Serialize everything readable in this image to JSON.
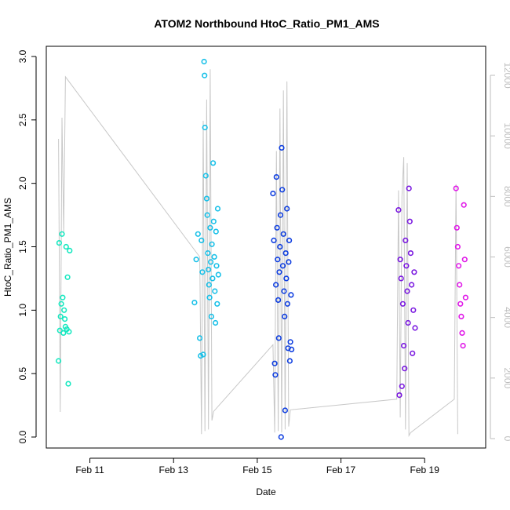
{
  "chart_data": {
    "type": "scatter",
    "title": "ATOM2 Northbound HtoC_Ratio_PM1_AMS",
    "xlabel": "Date",
    "ylabel": "HtoC_Ratio_PM1_AMS",
    "x_scale": "date",
    "xlim": [
      "2017-02-09 23:00",
      "2017-02-20 11:00"
    ],
    "ylim": [
      0,
      3.0
    ],
    "x_ticks": [
      "Feb 11",
      "Feb 13",
      "Feb 15",
      "Feb 17",
      "Feb 19"
    ],
    "y_ticks": [
      "0.0",
      "0.5",
      "1.0",
      "1.5",
      "2.0",
      "2.5",
      "3.0"
    ],
    "right_axis": {
      "ylim": [
        0,
        12000
      ],
      "ticks": [
        "0",
        "2000",
        "4000",
        "6000",
        "8000",
        "10000",
        "12000"
      ],
      "color": "#bdbdbd",
      "series_type": "line"
    },
    "grid": false,
    "legend": "none",
    "colors": {
      "group1": "#16e8c0",
      "group2": "#18c0e8",
      "group3": "#0e3ee0",
      "group4": "#7a18e0",
      "group5": "#e018e8",
      "secondary_line": "#c8c8c8"
    },
    "series": [
      {
        "group": "group1",
        "points": [
          [
            "2017-02-10 06:00",
            0.6
          ],
          [
            "2017-02-10 06:24",
            1.53
          ],
          [
            "2017-02-10 06:48",
            0.84
          ],
          [
            "2017-02-10 07:12",
            0.95
          ],
          [
            "2017-02-10 07:36",
            1.05
          ],
          [
            "2017-02-10 08:00",
            1.6
          ],
          [
            "2017-02-10 08:24",
            1.1
          ],
          [
            "2017-02-10 08:48",
            0.82
          ],
          [
            "2017-02-10 09:12",
            1.0
          ],
          [
            "2017-02-10 09:36",
            0.93
          ],
          [
            "2017-02-10 10:00",
            0.87
          ],
          [
            "2017-02-10 10:24",
            1.5
          ],
          [
            "2017-02-10 10:48",
            0.85
          ],
          [
            "2017-02-10 11:12",
            1.26
          ],
          [
            "2017-02-10 11:36",
            0.42
          ],
          [
            "2017-02-10 12:00",
            0.83
          ],
          [
            "2017-02-10 12:24",
            1.47
          ]
        ]
      },
      {
        "group": "group2",
        "points": [
          [
            "2017-02-13 12:00",
            1.06
          ],
          [
            "2017-02-13 13:00",
            1.4
          ],
          [
            "2017-02-13 14:00",
            1.6
          ],
          [
            "2017-02-13 15:00",
            0.78
          ],
          [
            "2017-02-13 15:30",
            0.64
          ],
          [
            "2017-02-13 16:00",
            1.55
          ],
          [
            "2017-02-13 16:30",
            1.3
          ],
          [
            "2017-02-13 17:00",
            0.65
          ],
          [
            "2017-02-13 17:30",
            2.96
          ],
          [
            "2017-02-13 17:45",
            2.85
          ],
          [
            "2017-02-13 18:00",
            2.44
          ],
          [
            "2017-02-13 18:30",
            2.06
          ],
          [
            "2017-02-13 19:00",
            1.88
          ],
          [
            "2017-02-13 19:20",
            1.75
          ],
          [
            "2017-02-13 19:40",
            1.45
          ],
          [
            "2017-02-13 20:00",
            1.32
          ],
          [
            "2017-02-13 20:20",
            1.2
          ],
          [
            "2017-02-13 20:40",
            1.1
          ],
          [
            "2017-02-13 21:00",
            1.65
          ],
          [
            "2017-02-13 21:20",
            1.38
          ],
          [
            "2017-02-13 21:40",
            0.95
          ],
          [
            "2017-02-13 22:00",
            1.52
          ],
          [
            "2017-02-13 22:20",
            1.25
          ],
          [
            "2017-02-13 22:40",
            2.16
          ],
          [
            "2017-02-13 23:00",
            1.7
          ],
          [
            "2017-02-13 23:20",
            1.42
          ],
          [
            "2017-02-13 23:40",
            1.15
          ],
          [
            "2017-02-14 00:00",
            0.9
          ],
          [
            "2017-02-14 00:20",
            1.62
          ],
          [
            "2017-02-14 00:40",
            1.35
          ],
          [
            "2017-02-14 01:00",
            1.05
          ],
          [
            "2017-02-14 01:20",
            1.8
          ],
          [
            "2017-02-14 01:40",
            1.28
          ]
        ]
      },
      {
        "group": "group3",
        "points": [
          [
            "2017-02-15 09:00",
            1.92
          ],
          [
            "2017-02-15 09:30",
            1.55
          ],
          [
            "2017-02-15 10:00",
            0.58
          ],
          [
            "2017-02-15 10:20",
            0.49
          ],
          [
            "2017-02-15 10:40",
            1.2
          ],
          [
            "2017-02-15 11:00",
            2.05
          ],
          [
            "2017-02-15 11:20",
            1.65
          ],
          [
            "2017-02-15 11:40",
            1.4
          ],
          [
            "2017-02-15 12:00",
            1.08
          ],
          [
            "2017-02-15 12:20",
            0.78
          ],
          [
            "2017-02-15 12:40",
            1.3
          ],
          [
            "2017-02-15 13:00",
            1.5
          ],
          [
            "2017-02-15 13:20",
            1.75
          ],
          [
            "2017-02-15 13:40",
            0.0
          ],
          [
            "2017-02-15 14:00",
            2.28
          ],
          [
            "2017-02-15 14:20",
            1.95
          ],
          [
            "2017-02-15 14:40",
            1.35
          ],
          [
            "2017-02-15 15:00",
            1.6
          ],
          [
            "2017-02-15 15:20",
            1.15
          ],
          [
            "2017-02-15 15:40",
            0.95
          ],
          [
            "2017-02-15 16:00",
            0.21
          ],
          [
            "2017-02-15 16:20",
            1.45
          ],
          [
            "2017-02-15 16:40",
            1.25
          ],
          [
            "2017-02-15 17:00",
            1.8
          ],
          [
            "2017-02-15 17:20",
            1.05
          ],
          [
            "2017-02-15 17:40",
            0.7
          ],
          [
            "2017-02-15 18:00",
            1.38
          ],
          [
            "2017-02-15 18:20",
            1.55
          ],
          [
            "2017-02-15 18:40",
            0.6
          ],
          [
            "2017-02-15 19:00",
            0.75
          ],
          [
            "2017-02-15 19:20",
            1.12
          ],
          [
            "2017-02-15 19:40",
            0.69
          ]
        ]
      },
      {
        "group": "group4",
        "points": [
          [
            "2017-02-18 09:00",
            1.79
          ],
          [
            "2017-02-18 09:30",
            0.33
          ],
          [
            "2017-02-18 10:00",
            1.4
          ],
          [
            "2017-02-18 10:30",
            1.25
          ],
          [
            "2017-02-18 11:00",
            0.4
          ],
          [
            "2017-02-18 11:30",
            1.05
          ],
          [
            "2017-02-18 12:00",
            0.72
          ],
          [
            "2017-02-18 12:30",
            0.54
          ],
          [
            "2017-02-18 13:00",
            1.55
          ],
          [
            "2017-02-18 13:30",
            1.35
          ],
          [
            "2017-02-18 14:00",
            1.15
          ],
          [
            "2017-02-18 14:30",
            0.9
          ],
          [
            "2017-02-18 15:00",
            1.96
          ],
          [
            "2017-02-18 15:30",
            1.7
          ],
          [
            "2017-02-18 16:00",
            1.45
          ],
          [
            "2017-02-18 16:30",
            1.2
          ],
          [
            "2017-02-18 17:00",
            0.66
          ],
          [
            "2017-02-18 17:30",
            1.0
          ],
          [
            "2017-02-18 18:00",
            1.3
          ],
          [
            "2017-02-18 18:30",
            0.86
          ]
        ]
      },
      {
        "group": "group5",
        "points": [
          [
            "2017-02-19 18:00",
            1.96
          ],
          [
            "2017-02-19 18:30",
            1.65
          ],
          [
            "2017-02-19 19:00",
            1.5
          ],
          [
            "2017-02-19 19:30",
            1.35
          ],
          [
            "2017-02-19 20:00",
            1.2
          ],
          [
            "2017-02-19 20:30",
            1.05
          ],
          [
            "2017-02-19 21:00",
            0.95
          ],
          [
            "2017-02-19 21:30",
            0.82
          ],
          [
            "2017-02-19 22:00",
            0.72
          ],
          [
            "2017-02-19 22:30",
            1.83
          ],
          [
            "2017-02-19 23:00",
            1.4
          ],
          [
            "2017-02-19 23:30",
            1.1
          ]
        ]
      }
    ],
    "secondary_line": [
      [
        "2017-02-10 06:00",
        9900
      ],
      [
        "2017-02-10 07:00",
        880
      ],
      [
        "2017-02-10 08:00",
        10600
      ],
      [
        "2017-02-10 09:00",
        6800
      ],
      [
        "2017-02-10 10:00",
        11950
      ],
      [
        "2017-02-13 15:00",
        6000
      ],
      [
        "2017-02-13 16:00",
        150
      ],
      [
        "2017-02-13 17:00",
        10500
      ],
      [
        "2017-02-13 18:00",
        250
      ],
      [
        "2017-02-13 19:00",
        11200
      ],
      [
        "2017-02-13 20:00",
        300
      ],
      [
        "2017-02-13 21:00",
        12200
      ],
      [
        "2017-02-13 22:00",
        600
      ],
      [
        "2017-02-13 23:00",
        900
      ],
      [
        "2017-02-15 09:00",
        3100
      ],
      [
        "2017-02-15 10:00",
        200
      ],
      [
        "2017-02-15 11:00",
        9500
      ],
      [
        "2017-02-15 12:00",
        250
      ],
      [
        "2017-02-15 13:00",
        10900
      ],
      [
        "2017-02-15 14:00",
        200
      ],
      [
        "2017-02-15 15:00",
        11500
      ],
      [
        "2017-02-15 16:00",
        300
      ],
      [
        "2017-02-15 17:00",
        11800
      ],
      [
        "2017-02-15 18:00",
        400
      ],
      [
        "2017-02-15 19:00",
        950
      ],
      [
        "2017-02-18 08:00",
        1300
      ],
      [
        "2017-02-18 09:00",
        8200
      ],
      [
        "2017-02-18 10:00",
        700
      ],
      [
        "2017-02-18 11:00",
        8000
      ],
      [
        "2017-02-18 12:00",
        9300
      ],
      [
        "2017-02-18 13:00",
        300
      ],
      [
        "2017-02-18 14:00",
        9100
      ],
      [
        "2017-02-18 15:00",
        100
      ],
      [
        "2017-02-18 16:00",
        200
      ],
      [
        "2017-02-19 17:00",
        1300
      ],
      [
        "2017-02-19 18:00",
        8400
      ],
      [
        "2017-02-19 19:00",
        150
      ]
    ]
  }
}
